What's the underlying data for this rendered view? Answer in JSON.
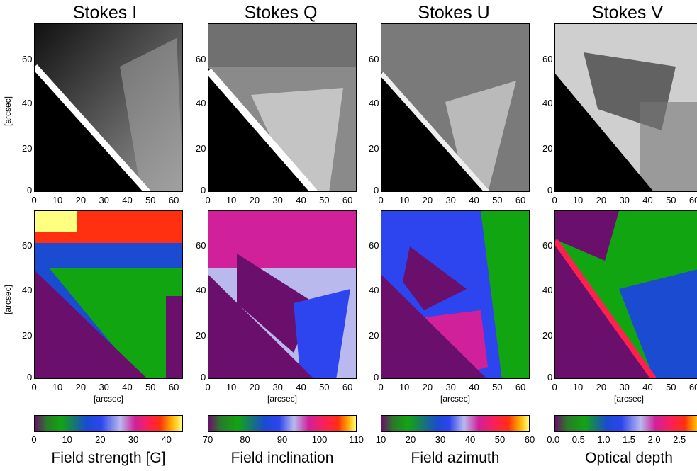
{
  "titles": [
    "Stokes I",
    "Stokes Q",
    "Stokes U",
    "Stokes V"
  ],
  "axis": {
    "y_ticks": [
      "0",
      "20",
      "40",
      "60"
    ],
    "x_ticks": [
      "0",
      "10",
      "20",
      "30",
      "40",
      "50",
      "60"
    ],
    "y_label": "[arcsec]",
    "x_label": "[arcsec]"
  },
  "colorbars": [
    {
      "label": "Field strength [G]",
      "ticks": [
        "0",
        "10",
        "20",
        "30",
        "40"
      ]
    },
    {
      "label": "Field inclination",
      "ticks": [
        "70",
        "80",
        "90",
        "100",
        "110"
      ]
    },
    {
      "label": "Field azimuth",
      "ticks": [
        "10",
        "20",
        "30",
        "40",
        "50",
        "60"
      ]
    },
    {
      "label": "Optical depth",
      "ticks": [
        "0.0",
        "0.5",
        "1.0",
        "1.5",
        "2.0",
        "2.5"
      ]
    }
  ],
  "colors": {
    "cmap": [
      "#6a0f6b",
      "#2a7a2a",
      "#12a512",
      "#1a4bd1",
      "#2d45ee",
      "#b9b9ee",
      "#d0209a",
      "#ff2050",
      "#ff3010",
      "#ffb000",
      "#ffff80"
    ],
    "off_limb_color": "#6a0f6b"
  }
}
